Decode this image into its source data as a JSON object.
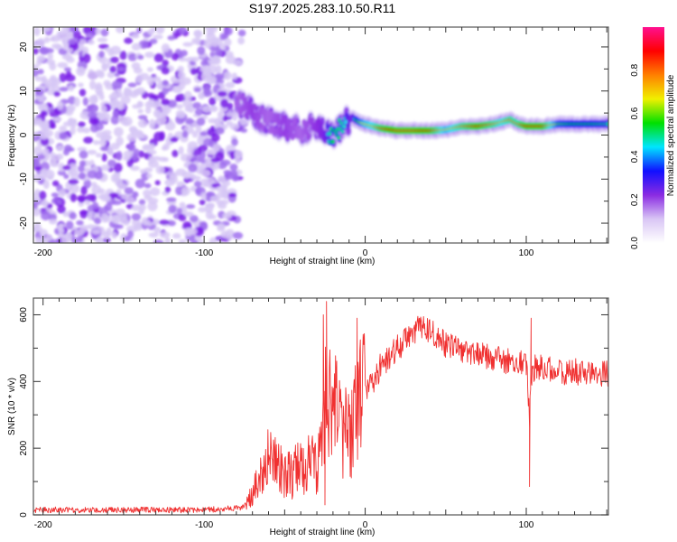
{
  "title": "S197.2025.283.10.50.R11",
  "chart_data": [
    {
      "type": "heatmap",
      "name": "spectrogram",
      "xlabel": "Height of straight line (km)",
      "ylabel": "Frequency (Hz)",
      "xlim": [
        -206,
        151
      ],
      "ylim": [
        -24.5,
        24.5
      ],
      "xticks": [
        -200,
        -100,
        0,
        100
      ],
      "xtick_labels": [
        "-200",
        "-100",
        "0",
        "100"
      ],
      "yticks": [
        -20,
        -10,
        0,
        10,
        20
      ],
      "ytick_labels": [
        "-20",
        "-10",
        "0",
        "10",
        "20"
      ],
      "colorbar": {
        "label": "Normalized spectral amplitude",
        "range": [
          0,
          1
        ],
        "ticks": [
          0.0,
          0.2,
          0.4,
          0.6,
          0.8
        ],
        "tick_labels": [
          "0.0",
          "0.2",
          "0.4",
          "0.6",
          "0.8"
        ],
        "colormap": [
          "#ffffff",
          "#d9c6f5",
          "#8a2be2",
          "#1010ff",
          "#00e5ff",
          "#00e000",
          "#f0f000",
          "#ff8000",
          "#ff0000",
          "#ff1090"
        ]
      },
      "noise_region_km": [
        -206,
        -75
      ],
      "ridge": {
        "km": [
          -80,
          -70,
          -60,
          -50,
          -40,
          -32,
          -25,
          -20,
          -15,
          -8,
          -4,
          0,
          5,
          10,
          20,
          30,
          40,
          50,
          60,
          70,
          80,
          85,
          90,
          95,
          100,
          110,
          120,
          130,
          140,
          151
        ],
        "freq": [
          8,
          5,
          3,
          2,
          1,
          2,
          1,
          0,
          2,
          4,
          3,
          2.5,
          2,
          1.5,
          1,
          1,
          1,
          1.2,
          2,
          2,
          2.5,
          3,
          3.5,
          2.5,
          2,
          2,
          2.5,
          2.5,
          2.5,
          2.5
        ],
        "amp": [
          0.3,
          0.35,
          0.3,
          0.35,
          0.3,
          0.35,
          0.4,
          0.55,
          0.5,
          0.4,
          0.6,
          0.7,
          0.75,
          0.85,
          0.95,
          0.95,
          0.9,
          0.7,
          0.8,
          0.9,
          0.8,
          0.75,
          0.8,
          0.8,
          0.9,
          0.9,
          0.6,
          0.55,
          0.55,
          0.5
        ]
      }
    },
    {
      "type": "line",
      "name": "snr",
      "xlabel": "Height of straight line (km)",
      "ylabel": "SNR (10 * v/v)",
      "xlim": [
        -206,
        151
      ],
      "ylim": [
        0,
        650
      ],
      "xticks": [
        -200,
        -100,
        0,
        100
      ],
      "xtick_labels": [
        "-200",
        "-100",
        "0",
        "100"
      ],
      "yticks": [
        0,
        200,
        400,
        600
      ],
      "ytick_labels": [
        "0",
        "200",
        "400",
        "600"
      ],
      "color": "#f03030",
      "envelope": {
        "km": [
          -206,
          -150,
          -100,
          -80,
          -75,
          -70,
          -65,
          -60,
          -55,
          -50,
          -45,
          -40,
          -35,
          -30,
          -25,
          -22,
          -20,
          -15,
          -10,
          -5,
          0,
          5,
          10,
          20,
          30,
          35,
          40,
          50,
          60,
          70,
          80,
          90,
          100,
          102,
          104,
          110,
          120,
          130,
          140,
          151
        ],
        "snr": [
          15,
          15,
          15,
          20,
          25,
          60,
          130,
          160,
          150,
          120,
          130,
          140,
          150,
          170,
          320,
          350,
          330,
          230,
          280,
          300,
          350,
          400,
          450,
          500,
          550,
          560,
          550,
          510,
          490,
          480,
          470,
          460,
          450,
          300,
          440,
          440,
          430,
          430,
          420,
          425
        ]
      },
      "spikes": [
        {
          "km": -24,
          "snr": 640
        },
        {
          "km": -26,
          "snr": 600
        },
        {
          "km": -25,
          "snr": 30
        },
        {
          "km": -5,
          "snr": 590
        },
        {
          "km": 102,
          "snr": 85
        },
        {
          "km": 103,
          "snr": 590
        },
        {
          "km": 100,
          "snr": 420
        }
      ]
    }
  ]
}
